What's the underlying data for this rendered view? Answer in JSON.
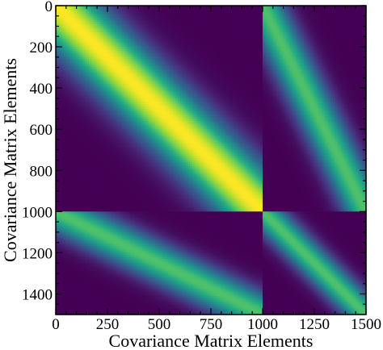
{
  "chart_data": {
    "type": "heatmap",
    "title": "",
    "xlabel": "Covariance Matrix Elements",
    "ylabel": "Covariance Matrix Elements",
    "xlim": [
      0,
      1500
    ],
    "ylim": [
      1500,
      0
    ],
    "x_ticks": [
      0,
      250,
      500,
      750,
      1000,
      1250,
      1500
    ],
    "y_ticks": [
      0,
      200,
      400,
      600,
      800,
      1000,
      1200,
      1400
    ],
    "x_tick_labels": [
      "0",
      "250",
      "500",
      "750",
      "1000",
      "1250",
      "1500"
    ],
    "y_tick_labels": [
      "0",
      "200",
      "400",
      "600",
      "800",
      "1000",
      "1200",
      "1400"
    ],
    "colormap": "viridis",
    "grid": false,
    "blocks": [
      {
        "rows": [
          0,
          1000
        ],
        "cols": [
          0,
          1000
        ],
        "peak": 1.0,
        "bandwidth": 150
      },
      {
        "rows": [
          0,
          1000
        ],
        "cols": [
          1000,
          1500
        ],
        "peak": 0.72,
        "bandwidth": 150
      },
      {
        "rows": [
          1000,
          1500
        ],
        "cols": [
          0,
          1000
        ],
        "peak": 0.72,
        "bandwidth": 150
      },
      {
        "rows": [
          1000,
          1500
        ],
        "cols": [
          1000,
          1500
        ],
        "peak": 0.72,
        "bandwidth": 150
      }
    ],
    "block_boundary": 1000
  }
}
